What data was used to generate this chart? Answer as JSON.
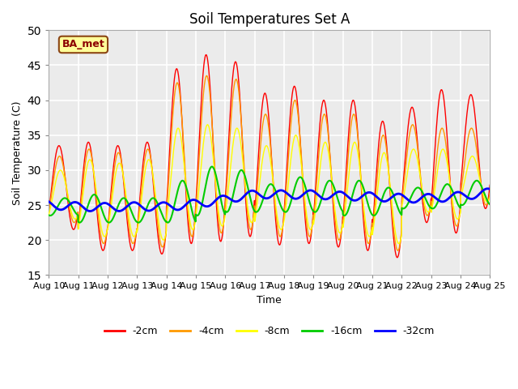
{
  "title": "Soil Temperatures Set A",
  "xlabel": "Time",
  "ylabel": "Soil Temperature (C)",
  "annotation": "BA_met",
  "ylim": [
    15,
    50
  ],
  "x_tick_labels": [
    "Aug 10",
    "Aug 11",
    "Aug 12",
    "Aug 13",
    "Aug 14",
    "Aug 15",
    "Aug 16",
    "Aug 17",
    "Aug 18",
    "Aug 19",
    "Aug 20",
    "Aug 21",
    "Aug 22",
    "Aug 23",
    "Aug 24",
    "Aug 25"
  ],
  "series": {
    "-2cm": {
      "color": "#ff0000",
      "linewidth": 1.0
    },
    "-4cm": {
      "color": "#ff9900",
      "linewidth": 1.0
    },
    "-8cm": {
      "color": "#ffff00",
      "linewidth": 1.0
    },
    "-16cm": {
      "color": "#00cc00",
      "linewidth": 1.5
    },
    "-32cm": {
      "color": "#0000ff",
      "linewidth": 2.0
    }
  },
  "legend_order": [
    "-2cm",
    "-4cm",
    "-8cm",
    "-16cm",
    "-32cm"
  ],
  "background_color": "#ffffff",
  "plot_bg_color": "#ebebeb",
  "grid_color": "#ffffff",
  "title_fontsize": 12,
  "axis_fontsize": 9,
  "tick_fontsize": 8,
  "day_peaks_2cm": [
    33.5,
    34.0,
    33.5,
    34.0,
    44.5,
    46.5,
    45.5,
    41.0,
    42.0,
    40.0,
    40.0,
    37.0,
    39.0,
    41.5,
    40.8
  ],
  "day_troughs_2cm": [
    21.5,
    18.5,
    18.5,
    18.0,
    19.5,
    19.8,
    20.5,
    19.3,
    19.5,
    19.0,
    18.5,
    17.5,
    22.5,
    21.0,
    24.5
  ],
  "day_peaks_4cm": [
    32.0,
    33.0,
    32.5,
    33.0,
    42.5,
    43.5,
    43.0,
    38.0,
    40.0,
    38.0,
    38.0,
    35.0,
    36.5,
    36.0,
    36.0
  ],
  "day_troughs_4cm": [
    22.5,
    19.5,
    19.5,
    19.0,
    20.5,
    21.0,
    21.5,
    20.5,
    20.5,
    20.0,
    19.5,
    18.5,
    23.5,
    22.0,
    25.0
  ],
  "day_peaks_8cm": [
    30.0,
    31.5,
    31.0,
    31.5,
    36.0,
    36.5,
    36.0,
    33.5,
    35.0,
    34.0,
    34.0,
    32.5,
    33.0,
    33.0,
    32.0
  ],
  "day_troughs_8cm": [
    23.0,
    20.5,
    20.5,
    20.0,
    21.5,
    22.0,
    22.5,
    21.5,
    21.5,
    21.0,
    20.5,
    19.5,
    24.0,
    23.0,
    25.5
  ],
  "day_peaks_16cm": [
    26.0,
    26.5,
    26.0,
    26.0,
    28.5,
    30.5,
    30.0,
    28.0,
    29.0,
    28.5,
    28.5,
    27.5,
    27.5,
    28.0,
    28.5
  ],
  "day_troughs_16cm": [
    23.5,
    22.5,
    22.5,
    22.5,
    22.5,
    23.5,
    24.0,
    24.0,
    24.0,
    24.0,
    23.5,
    23.5,
    24.5,
    24.5,
    25.0
  ],
  "day_mid_32cm": [
    25.0,
    24.8,
    24.7,
    24.8,
    24.8,
    25.2,
    25.8,
    26.5,
    26.5,
    26.5,
    26.3,
    26.2,
    26.0,
    26.0,
    26.3,
    26.8
  ]
}
